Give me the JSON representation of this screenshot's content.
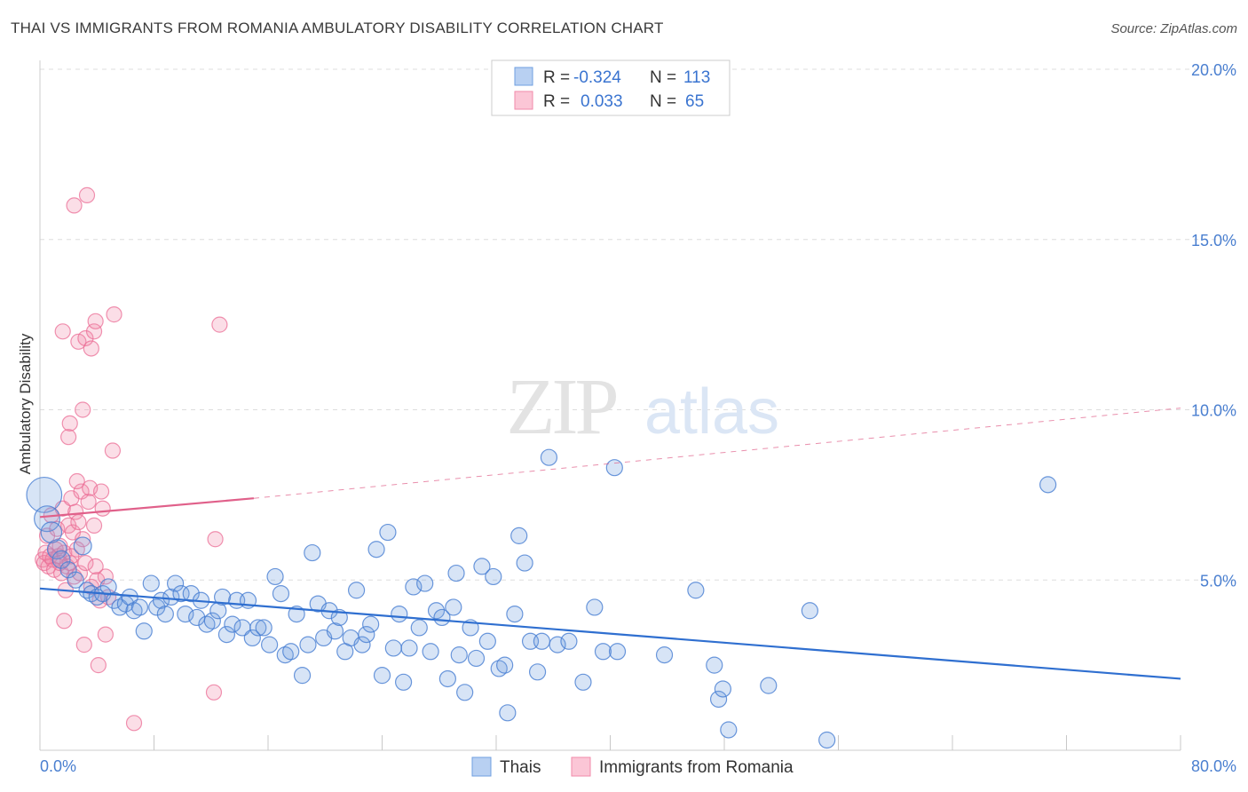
{
  "title": "THAI VS IMMIGRANTS FROM ROMANIA AMBULATORY DISABILITY CORRELATION CHART",
  "source": "Source: ZipAtlas.com",
  "watermark": {
    "zip": "ZIP",
    "atlas": "atlas"
  },
  "colors": {
    "blue": "#6f9fe0",
    "blue_line": "#2f6fd0",
    "pink": "#f08aaa",
    "pink_line": "#e0608a",
    "grid": "#dddddd",
    "axis_text": "#4a7fd0"
  },
  "legend": {
    "r_label": "R =",
    "n_label": "N =",
    "rows": [
      {
        "series": "Thais",
        "r": "-0.324",
        "n": "113",
        "color": "blue"
      },
      {
        "series": "Immigrants from Romania",
        "r": "0.033",
        "n": "65",
        "color": "pink"
      }
    ]
  },
  "chart_data": {
    "type": "scatter",
    "title": "THAI VS IMMIGRANTS FROM ROMANIA AMBULATORY DISABILITY CORRELATION CHART",
    "xlabel": "",
    "ylabel": "Ambulatory Disability",
    "xlim": [
      0,
      80
    ],
    "ylim": [
      0,
      20
    ],
    "x_tick_labels": [
      "0.0%",
      "80.0%"
    ],
    "y_ticks": [
      5,
      10,
      15,
      20
    ],
    "y_tick_labels": [
      "5.0%",
      "10.0%",
      "15.0%",
      "20.0%"
    ],
    "grid": true,
    "legend_position": "top-center",
    "series": [
      {
        "name": "Thais",
        "color": "#6f9fe0",
        "trend": {
          "x0": 0,
          "y0": 4.75,
          "x1": 80,
          "y1": 2.1
        },
        "points": [
          [
            0.3,
            7.5,
            2.2
          ],
          [
            0.5,
            6.8,
            1.6
          ],
          [
            0.8,
            6.4,
            1.3
          ],
          [
            1.2,
            5.9,
            1.2
          ],
          [
            1.5,
            5.6,
            1.1
          ],
          [
            2.0,
            5.3,
            1.0
          ],
          [
            2.5,
            5.0,
            1.0
          ],
          [
            3.0,
            6.0,
            1.1
          ],
          [
            3.3,
            4.7,
            1.0
          ],
          [
            3.6,
            4.6,
            1.0
          ],
          [
            4.0,
            4.5,
            1.0
          ],
          [
            4.4,
            4.6,
            1.0
          ],
          [
            4.8,
            4.8,
            1.0
          ],
          [
            5.2,
            4.4,
            1.0
          ],
          [
            5.6,
            4.2,
            1.0
          ],
          [
            6.0,
            4.3,
            1.0
          ],
          [
            6.3,
            4.5,
            1.0
          ],
          [
            6.6,
            4.1,
            1.0
          ],
          [
            7.0,
            4.2,
            1.0
          ],
          [
            7.3,
            3.5,
            1.0
          ],
          [
            7.8,
            4.9,
            1.0
          ],
          [
            8.2,
            4.2,
            1.0
          ],
          [
            8.5,
            4.4,
            1.0
          ],
          [
            8.8,
            4.0,
            1.0
          ],
          [
            9.2,
            4.5,
            1.0
          ],
          [
            9.5,
            4.9,
            1.0
          ],
          [
            9.9,
            4.6,
            1.0
          ],
          [
            10.2,
            4.0,
            1.0
          ],
          [
            10.6,
            4.6,
            1.0
          ],
          [
            11.0,
            3.9,
            1.0
          ],
          [
            11.3,
            4.4,
            1.0
          ],
          [
            11.7,
            3.7,
            1.0
          ],
          [
            12.1,
            3.8,
            1.0
          ],
          [
            12.5,
            4.1,
            1.0
          ],
          [
            12.8,
            4.5,
            1.0
          ],
          [
            13.1,
            3.4,
            1.0
          ],
          [
            13.5,
            3.7,
            1.0
          ],
          [
            13.8,
            4.4,
            1.0
          ],
          [
            14.2,
            3.6,
            1.0
          ],
          [
            14.6,
            4.4,
            1.0
          ],
          [
            14.9,
            3.3,
            1.0
          ],
          [
            15.3,
            3.6,
            1.0
          ],
          [
            15.7,
            3.6,
            1.0
          ],
          [
            16.1,
            3.1,
            1.0
          ],
          [
            16.5,
            5.1,
            1.0
          ],
          [
            16.9,
            4.6,
            1.0
          ],
          [
            17.2,
            2.8,
            1.0
          ],
          [
            17.6,
            2.9,
            1.0
          ],
          [
            18.0,
            4.0,
            1.0
          ],
          [
            18.4,
            2.2,
            1.0
          ],
          [
            18.8,
            3.1,
            1.0
          ],
          [
            19.1,
            5.8,
            1.0
          ],
          [
            19.5,
            4.3,
            1.0
          ],
          [
            19.9,
            3.3,
            1.0
          ],
          [
            20.3,
            4.1,
            1.0
          ],
          [
            20.7,
            3.5,
            1.0
          ],
          [
            21.0,
            3.9,
            1.0
          ],
          [
            21.4,
            2.9,
            1.0
          ],
          [
            21.8,
            3.3,
            1.0
          ],
          [
            22.2,
            4.7,
            1.0
          ],
          [
            22.6,
            3.1,
            1.0
          ],
          [
            22.9,
            3.4,
            1.0
          ],
          [
            23.2,
            3.7,
            1.0
          ],
          [
            23.6,
            5.9,
            1.0
          ],
          [
            24.0,
            2.2,
            1.0
          ],
          [
            24.4,
            6.4,
            1.0
          ],
          [
            24.8,
            3.0,
            1.0
          ],
          [
            25.2,
            4.0,
            1.0
          ],
          [
            25.5,
            2.0,
            1.0
          ],
          [
            25.9,
            3.0,
            1.0
          ],
          [
            26.2,
            4.8,
            1.0
          ],
          [
            26.6,
            3.6,
            1.0
          ],
          [
            27.0,
            4.9,
            1.0
          ],
          [
            27.4,
            2.9,
            1.0
          ],
          [
            27.8,
            4.1,
            1.0
          ],
          [
            28.2,
            3.9,
            1.0
          ],
          [
            28.6,
            2.1,
            1.0
          ],
          [
            29.0,
            4.2,
            1.0
          ],
          [
            29.4,
            2.8,
            1.0
          ],
          [
            29.8,
            1.7,
            1.0
          ],
          [
            30.2,
            3.6,
            1.0
          ],
          [
            30.6,
            2.7,
            1.0
          ],
          [
            31.0,
            5.4,
            1.0
          ],
          [
            31.4,
            3.2,
            1.0
          ],
          [
            31.8,
            5.1,
            1.0
          ],
          [
            32.2,
            2.4,
            1.0
          ],
          [
            32.6,
            2.5,
            1.0
          ],
          [
            32.8,
            1.1,
            1.0
          ],
          [
            33.3,
            4.0,
            1.0
          ],
          [
            33.6,
            6.3,
            1.0
          ],
          [
            34.0,
            5.5,
            1.0
          ],
          [
            34.4,
            3.2,
            1.0
          ],
          [
            34.9,
            2.3,
            1.0
          ],
          [
            35.2,
            3.2,
            1.0
          ],
          [
            35.7,
            8.6,
            1.0
          ],
          [
            36.3,
            3.1,
            1.0
          ],
          [
            37.1,
            3.2,
            1.0
          ],
          [
            38.1,
            2.0,
            1.0
          ],
          [
            38.9,
            4.2,
            1.0
          ],
          [
            39.5,
            2.9,
            1.0
          ],
          [
            40.3,
            8.3,
            1.0
          ],
          [
            40.5,
            2.9,
            1.0
          ],
          [
            43.8,
            2.8,
            1.0
          ],
          [
            46.0,
            4.7,
            1.0
          ],
          [
            47.3,
            2.5,
            1.0
          ],
          [
            47.6,
            1.5,
            1.0
          ],
          [
            47.9,
            1.8,
            1.0
          ],
          [
            48.3,
            0.6,
            1.0
          ],
          [
            51.1,
            1.9,
            1.0
          ],
          [
            54.0,
            4.1,
            1.0
          ],
          [
            55.2,
            0.3,
            1.0
          ],
          [
            70.7,
            7.8,
            1.0
          ],
          [
            29.2,
            5.2,
            1.0
          ]
        ]
      },
      {
        "name": "Immigrants from Romania",
        "color": "#f08aaa",
        "trend": {
          "x0": 0,
          "y0": 6.85,
          "x1": 15,
          "y1": 7.4,
          "dashed_to_x": 80,
          "dashed_to_y": 10.05
        },
        "points": [
          [
            0.2,
            5.6
          ],
          [
            0.3,
            5.5
          ],
          [
            0.4,
            5.8
          ],
          [
            0.5,
            6.3
          ],
          [
            0.6,
            5.4
          ],
          [
            0.7,
            5.7
          ],
          [
            0.8,
            6.9
          ],
          [
            0.9,
            5.6
          ],
          [
            1.0,
            5.3
          ],
          [
            1.1,
            5.9
          ],
          [
            1.2,
            6.5
          ],
          [
            1.3,
            5.7
          ],
          [
            1.4,
            6.0
          ],
          [
            1.5,
            5.2
          ],
          [
            1.6,
            7.1
          ],
          [
            1.7,
            5.8
          ],
          [
            1.8,
            4.7
          ],
          [
            1.9,
            5.4
          ],
          [
            2.0,
            6.6
          ],
          [
            2.1,
            5.5
          ],
          [
            2.2,
            7.4
          ],
          [
            2.3,
            6.4
          ],
          [
            2.4,
            5.1
          ],
          [
            2.5,
            7.0
          ],
          [
            2.6,
            5.9
          ],
          [
            2.7,
            6.7
          ],
          [
            2.8,
            5.2
          ],
          [
            2.9,
            7.6
          ],
          [
            3.0,
            6.2
          ],
          [
            3.2,
            5.5
          ],
          [
            3.4,
            7.3
          ],
          [
            3.6,
            4.8
          ],
          [
            3.8,
            6.6
          ],
          [
            4.0,
            5.0
          ],
          [
            4.2,
            4.4
          ],
          [
            4.4,
            7.1
          ],
          [
            4.6,
            5.1
          ],
          [
            4.8,
            4.5
          ],
          [
            1.6,
            12.3
          ],
          [
            2.1,
            9.6
          ],
          [
            2.4,
            16.0
          ],
          [
            2.7,
            12.0
          ],
          [
            3.0,
            10.0
          ],
          [
            3.2,
            12.1
          ],
          [
            3.3,
            16.3
          ],
          [
            3.6,
            11.8
          ],
          [
            3.8,
            12.3
          ],
          [
            3.9,
            12.6
          ],
          [
            5.2,
            12.8
          ],
          [
            5.1,
            8.8
          ],
          [
            12.6,
            12.5
          ],
          [
            2.0,
            9.2
          ],
          [
            2.6,
            7.9
          ],
          [
            3.5,
            7.7
          ],
          [
            4.3,
            7.6
          ],
          [
            4.6,
            3.4
          ],
          [
            3.1,
            3.1
          ],
          [
            4.1,
            2.5
          ],
          [
            1.7,
            3.8
          ],
          [
            6.6,
            0.8
          ],
          [
            12.2,
            1.7
          ],
          [
            12.3,
            6.2
          ],
          [
            2.2,
            5.7
          ],
          [
            1.4,
            5.5
          ],
          [
            3.9,
            5.4
          ]
        ]
      }
    ],
    "legend_labels": [
      "Thais",
      "Immigrants from Romania"
    ]
  }
}
